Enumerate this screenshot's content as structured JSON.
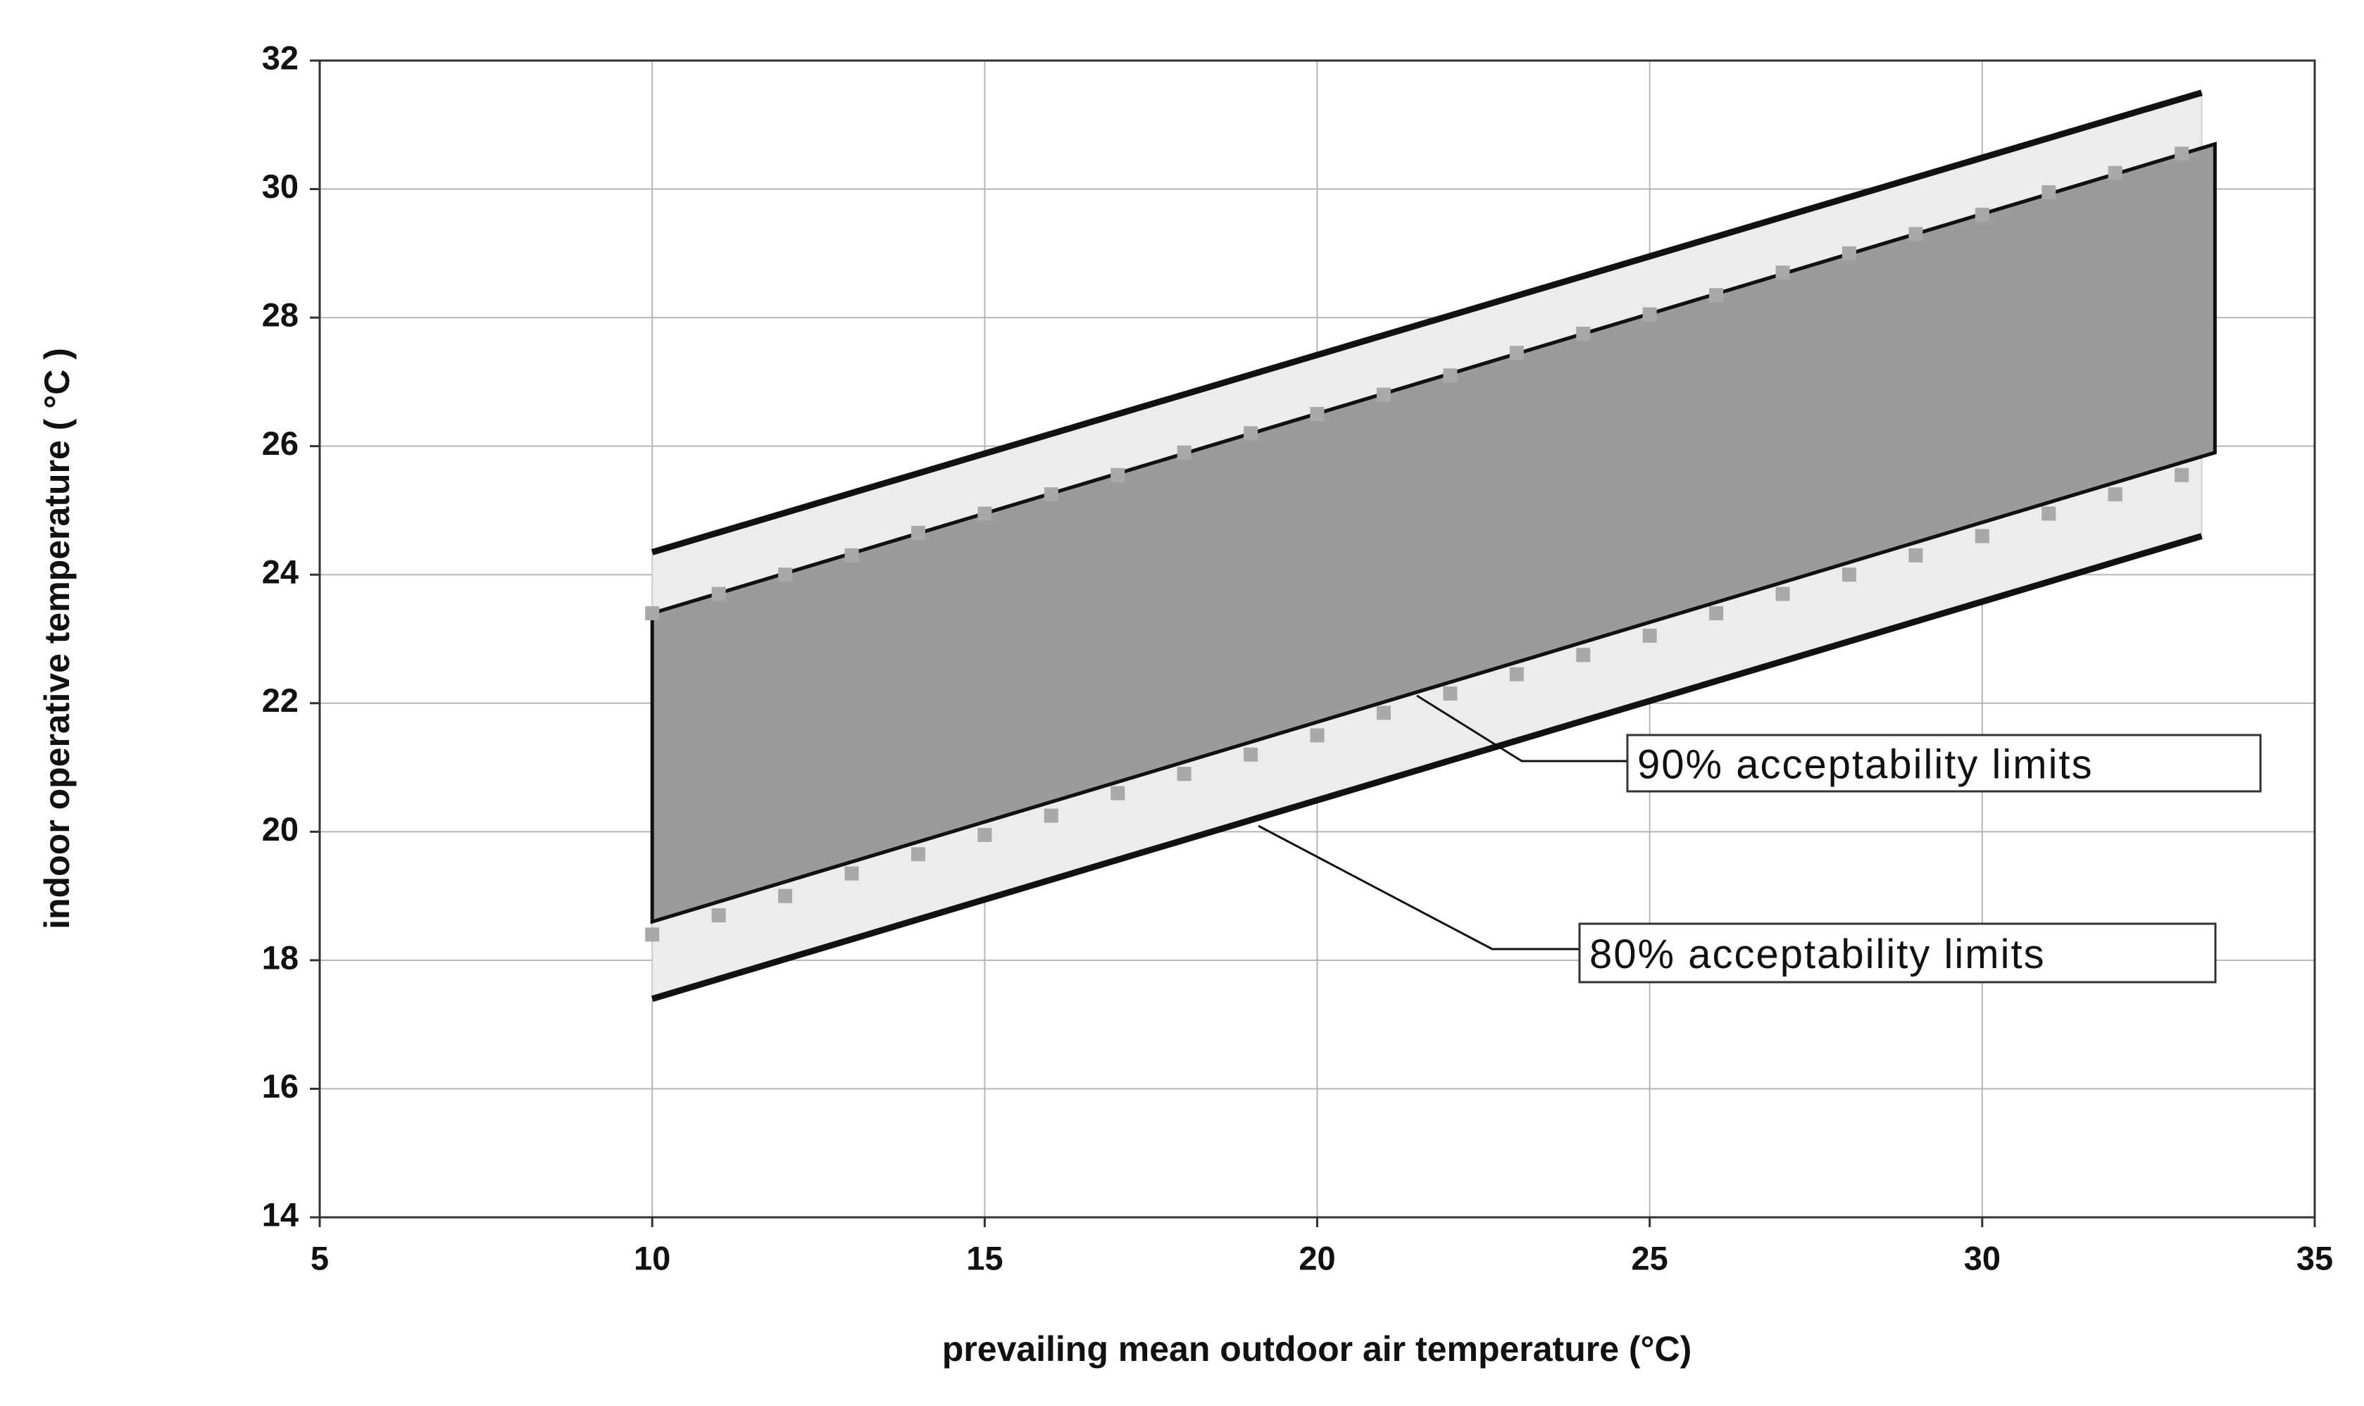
{
  "chart_data": {
    "type": "band",
    "x_label": "prevailing mean outdoor air temperature (°C)",
    "y_label": "indoor operative temperature ( °C )",
    "xlim": [
      5,
      35
    ],
    "xticks": [
      5,
      10,
      15,
      20,
      25,
      30,
      35
    ],
    "ylim": [
      14,
      32
    ],
    "yticks": [
      14,
      16,
      18,
      20,
      22,
      24,
      26,
      28,
      30,
      32
    ],
    "grid": true,
    "bands": [
      {
        "label": "80% acceptability limits",
        "x": [
          10,
          33.3
        ],
        "lower": [
          17.4,
          24.6
        ],
        "upper": [
          24.35,
          31.5
        ],
        "fill": "#ececec",
        "line_color": "#111111"
      },
      {
        "label": "90% acceptability limits",
        "x": [
          10,
          33.5
        ],
        "lower": [
          18.6,
          25.9
        ],
        "upper": [
          23.4,
          30.7
        ],
        "fill": "#9b9b9b",
        "line_color": "#111111"
      }
    ],
    "points": {
      "color": "#a9a9a9",
      "x": [
        10,
        11,
        12,
        13,
        14,
        15,
        16,
        17,
        18,
        19,
        20,
        21,
        22,
        23,
        24,
        25,
        26,
        27,
        28,
        29,
        30,
        31,
        32,
        33
      ],
      "upper": [
        23.4,
        23.7,
        24.0,
        24.3,
        24.65,
        24.95,
        25.25,
        25.55,
        25.9,
        26.2,
        26.5,
        26.8,
        27.1,
        27.45,
        27.75,
        28.05,
        28.35,
        28.7,
        29.0,
        29.3,
        29.6,
        29.95,
        30.25,
        30.55
      ],
      "lower": [
        18.4,
        18.7,
        19.0,
        19.35,
        19.65,
        19.95,
        20.25,
        20.6,
        20.9,
        21.2,
        21.5,
        21.85,
        22.15,
        22.45,
        22.75,
        23.05,
        23.4,
        23.7,
        24.0,
        24.3,
        24.6,
        24.95,
        25.25,
        25.55
      ]
    }
  }
}
